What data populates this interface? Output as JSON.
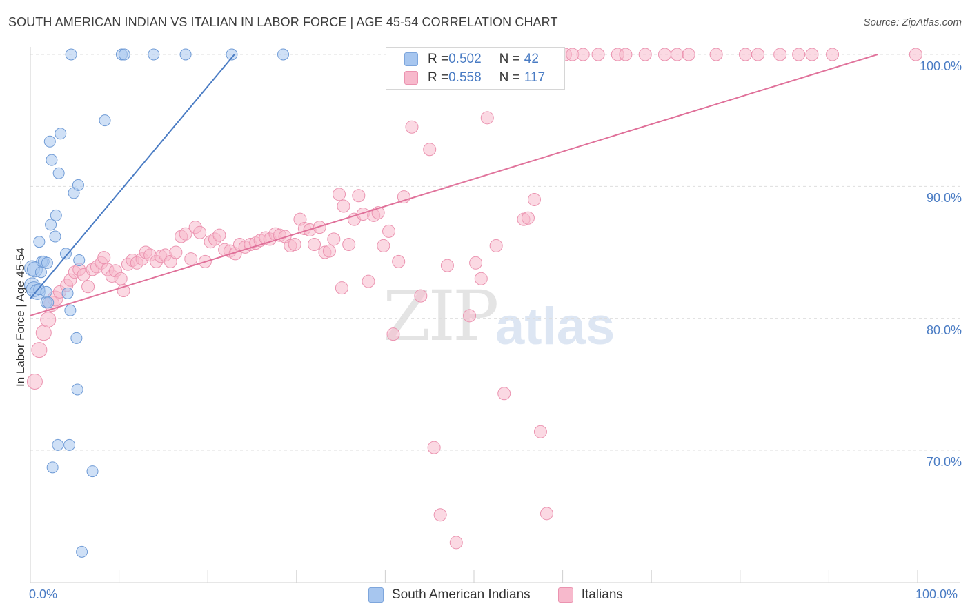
{
  "header": {
    "title": "SOUTH AMERICAN INDIAN VS ITALIAN IN LABOR FORCE | AGE 45-54 CORRELATION CHART",
    "source": "Source: ZipAtlas.com"
  },
  "watermark": {
    "zip": "ZIP",
    "atlas": "atlas"
  },
  "legend": {
    "rows": [
      {
        "r_label": "R = ",
        "r_value": "0.502",
        "n_label": "N = ",
        "n_value": "42",
        "color": "#a7c6ef"
      },
      {
        "r_label": "R = ",
        "r_value": "0.558",
        "n_label": "N = ",
        "n_value": "117",
        "color": "#f7b9cc"
      }
    ]
  },
  "bottom_legend": [
    "South American Indians",
    "Italians"
  ],
  "chart_data": {
    "type": "scatter",
    "title": "SOUTH AMERICAN INDIAN VS ITALIAN IN LABOR FORCE | AGE 45-54 CORRELATION CHART",
    "ylabel": "In Labor Force | Age 45-54",
    "xlabel": "",
    "x_tick_labels": [
      "0.0%",
      "100.0%"
    ],
    "y_tick_labels": [
      "70.0%",
      "80.0%",
      "90.0%",
      "100.0%"
    ],
    "y_ticks": [
      70,
      80,
      90,
      100
    ],
    "xlim": [
      0,
      100
    ],
    "ylim": [
      60.8,
      100.8
    ],
    "grid": "horizontal dashed",
    "colors": {
      "blue": "#4a7cc4",
      "blue_fill": "#a7c6ef",
      "pink": "#e0719a",
      "pink_fill": "#f7b9cc",
      "tick_text": "#4a7cc4"
    },
    "series": [
      {
        "name": "South American Indians",
        "color": "#4a7cc4",
        "trend": {
          "x": [
            0,
            23
          ],
          "y": [
            81.5,
            100
          ]
        },
        "points": [
          [
            0.2,
            82.5
          ],
          [
            0.2,
            83.8
          ],
          [
            0.4,
            82.2
          ],
          [
            0.5,
            83.7
          ],
          [
            0.8,
            82.0
          ],
          [
            1.0,
            82.2
          ],
          [
            1.0,
            85.8
          ],
          [
            1.2,
            83.5
          ],
          [
            1.3,
            84.3
          ],
          [
            1.5,
            84.3
          ],
          [
            1.8,
            82.0
          ],
          [
            1.8,
            81.2
          ],
          [
            1.9,
            84.2
          ],
          [
            2.0,
            81.2
          ],
          [
            2.2,
            93.4
          ],
          [
            2.3,
            87.1
          ],
          [
            2.4,
            92.0
          ],
          [
            2.5,
            68.7
          ],
          [
            2.8,
            86.2
          ],
          [
            2.9,
            87.8
          ],
          [
            3.1,
            70.4
          ],
          [
            3.2,
            91.0
          ],
          [
            3.4,
            94.0
          ],
          [
            4.0,
            84.9
          ],
          [
            4.2,
            81.9
          ],
          [
            4.4,
            70.4
          ],
          [
            4.5,
            80.6
          ],
          [
            4.6,
            100
          ],
          [
            4.9,
            89.5
          ],
          [
            5.2,
            78.5
          ],
          [
            5.3,
            74.6
          ],
          [
            5.4,
            90.1
          ],
          [
            5.5,
            84.4
          ],
          [
            5.8,
            62.3
          ],
          [
            7.0,
            68.4
          ],
          [
            8.4,
            95.0
          ],
          [
            10.3,
            100
          ],
          [
            10.6,
            100
          ],
          [
            13.9,
            100
          ],
          [
            17.5,
            100
          ],
          [
            22.7,
            100
          ],
          [
            28.5,
            100
          ]
        ]
      },
      {
        "name": "Italians",
        "color": "#e0719a",
        "trend": {
          "x": [
            0,
            95.5
          ],
          "y": [
            80.2,
            100
          ]
        },
        "points": [
          [
            0.5,
            75.2
          ],
          [
            1.0,
            77.6
          ],
          [
            1.5,
            78.9
          ],
          [
            2.0,
            79.9
          ],
          [
            2.4,
            81.1
          ],
          [
            2.8,
            81.5
          ],
          [
            3.3,
            82.0
          ],
          [
            4.1,
            82.5
          ],
          [
            4.5,
            82.9
          ],
          [
            5.0,
            83.5
          ],
          [
            5.5,
            83.7
          ],
          [
            6.0,
            83.3
          ],
          [
            6.5,
            82.4
          ],
          [
            7.0,
            83.7
          ],
          [
            7.5,
            83.9
          ],
          [
            8.0,
            84.2
          ],
          [
            8.3,
            84.6
          ],
          [
            8.7,
            83.7
          ],
          [
            9.2,
            83.2
          ],
          [
            9.6,
            83.6
          ],
          [
            10.2,
            83.0
          ],
          [
            10.5,
            82.1
          ],
          [
            11.0,
            84.1
          ],
          [
            11.5,
            84.4
          ],
          [
            12.0,
            84.2
          ],
          [
            12.6,
            84.5
          ],
          [
            13.0,
            85.0
          ],
          [
            13.5,
            84.8
          ],
          [
            14.2,
            84.3
          ],
          [
            14.7,
            84.7
          ],
          [
            15.2,
            84.8
          ],
          [
            15.8,
            84.3
          ],
          [
            16.4,
            85.0
          ],
          [
            17.0,
            86.2
          ],
          [
            17.5,
            86.4
          ],
          [
            18.1,
            84.5
          ],
          [
            18.6,
            86.9
          ],
          [
            19.1,
            86.5
          ],
          [
            19.7,
            84.3
          ],
          [
            20.3,
            85.8
          ],
          [
            20.8,
            86.0
          ],
          [
            21.3,
            86.3
          ],
          [
            21.9,
            85.2
          ],
          [
            22.5,
            85.1
          ],
          [
            23.1,
            84.9
          ],
          [
            23.6,
            85.6
          ],
          [
            24.2,
            85.4
          ],
          [
            24.8,
            85.6
          ],
          [
            25.4,
            85.7
          ],
          [
            25.9,
            85.9
          ],
          [
            26.5,
            86.1
          ],
          [
            27.0,
            86.0
          ],
          [
            27.6,
            86.4
          ],
          [
            28.1,
            86.3
          ],
          [
            28.7,
            86.2
          ],
          [
            29.3,
            85.5
          ],
          [
            29.8,
            85.6
          ],
          [
            30.4,
            87.5
          ],
          [
            30.9,
            86.8
          ],
          [
            31.5,
            86.7
          ],
          [
            32.0,
            85.6
          ],
          [
            32.6,
            86.9
          ],
          [
            33.2,
            85.0
          ],
          [
            33.7,
            85.1
          ],
          [
            34.2,
            86.0
          ],
          [
            34.8,
            89.4
          ],
          [
            35.3,
            88.5
          ],
          [
            35.9,
            85.6
          ],
          [
            36.5,
            87.5
          ],
          [
            37.0,
            89.3
          ],
          [
            37.5,
            87.9
          ],
          [
            38.1,
            82.8
          ],
          [
            38.7,
            87.8
          ],
          [
            39.2,
            88.0
          ],
          [
            39.8,
            85.5
          ],
          [
            40.4,
            86.6
          ],
          [
            40.9,
            78.8
          ],
          [
            41.5,
            84.3
          ],
          [
            42.1,
            89.2
          ],
          [
            43.0,
            94.5
          ],
          [
            44.0,
            81.7
          ],
          [
            45.0,
            92.8
          ],
          [
            45.5,
            70.2
          ],
          [
            46.2,
            65.1
          ],
          [
            47.0,
            84.0
          ],
          [
            48.0,
            63.0
          ],
          [
            49.5,
            80.2
          ],
          [
            50.2,
            84.2
          ],
          [
            50.8,
            83.0
          ],
          [
            51.5,
            95.2
          ],
          [
            52.5,
            85.5
          ],
          [
            53.4,
            74.3
          ],
          [
            54.2,
            100
          ],
          [
            55.6,
            87.5
          ],
          [
            56.1,
            87.6
          ],
          [
            56.8,
            89.0
          ],
          [
            57.5,
            71.4
          ],
          [
            58.2,
            65.2
          ],
          [
            60.3,
            100
          ],
          [
            61.1,
            100
          ],
          [
            62.3,
            100
          ],
          [
            64.0,
            100
          ],
          [
            66.2,
            100
          ],
          [
            67.1,
            100
          ],
          [
            69.3,
            100
          ],
          [
            71.5,
            100
          ],
          [
            72.9,
            100
          ],
          [
            74.2,
            100
          ],
          [
            77.3,
            100
          ],
          [
            80.6,
            100
          ],
          [
            82.0,
            100
          ],
          [
            84.5,
            100
          ],
          [
            86.6,
            100
          ],
          [
            88.1,
            100
          ],
          [
            90.4,
            100
          ],
          [
            99.8,
            100
          ],
          [
            35.1,
            82.3
          ]
        ]
      }
    ]
  }
}
